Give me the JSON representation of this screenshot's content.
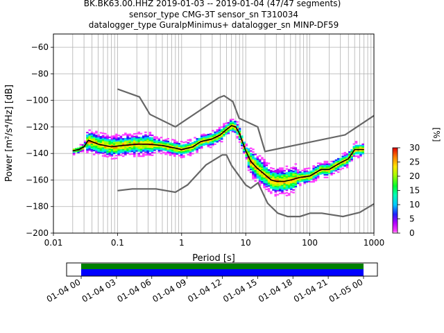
{
  "chart_data": {
    "type": "heatmap",
    "title_lines": [
      "BK.BK63.00.HHZ   2019-01-03 -- 2019-01-04  (47/47 segments)",
      "sensor_type CMG-3T sensor_sn T310034",
      "datalogger_type GuralpMinimus+ datalogger_sn MINP-DF59"
    ],
    "xlabel": "Period [s]",
    "ylabel": "Power [m²/s⁴/Hz] [dB]",
    "x_scale": "log",
    "xlim": [
      0.01,
      1000
    ],
    "ylim": [
      -200,
      -50
    ],
    "grid": true,
    "x_ticks": [
      {
        "value": 0.01,
        "label": "0.01"
      },
      {
        "value": 0.1,
        "label": "0.1"
      },
      {
        "value": 1,
        "label": "1"
      },
      {
        "value": 10,
        "label": "10"
      },
      {
        "value": 100,
        "label": "100"
      },
      {
        "value": 1000,
        "label": "1000"
      }
    ],
    "y_ticks": [
      {
        "value": -60,
        "label": "−60"
      },
      {
        "value": -80,
        "label": "−80"
      },
      {
        "value": -100,
        "label": "−100"
      },
      {
        "value": -120,
        "label": "−120"
      },
      {
        "value": -140,
        "label": "−140"
      },
      {
        "value": -160,
        "label": "−160"
      },
      {
        "value": -180,
        "label": "−180"
      },
      {
        "value": -200,
        "label": "−200"
      }
    ],
    "colorbar": {
      "label": "[%]",
      "range": [
        0,
        30
      ],
      "ticks": [
        {
          "value": 0,
          "label": "0"
        },
        {
          "value": 5,
          "label": "5"
        },
        {
          "value": 10,
          "label": "10"
        },
        {
          "value": 15,
          "label": "15"
        },
        {
          "value": 20,
          "label": "20"
        },
        {
          "value": 25,
          "label": "25"
        },
        {
          "value": 30,
          "label": "30"
        }
      ]
    },
    "nhnm": {
      "x": [
        0.1,
        0.22,
        0.32,
        0.8,
        3.8,
        4.6,
        6.3,
        7.9,
        15.4,
        20,
        354.8,
        1000
      ],
      "y": [
        -91.5,
        -97.4,
        -110.5,
        -120,
        -98,
        -96.5,
        -101,
        -113.5,
        -120,
        -138.5,
        -126,
        -111.5
      ]
    },
    "nlnm": {
      "x": [
        0.1,
        0.17,
        0.4,
        0.8,
        1.24,
        2.4,
        4.3,
        5,
        6,
        10,
        12,
        15.6,
        21.9,
        31.6,
        45,
        70,
        101,
        154,
        328,
        600,
        1000
      ],
      "y": [
        -168,
        -166.7,
        -166.7,
        -169.2,
        -163.7,
        -148.6,
        -141.1,
        -141.1,
        -149,
        -163.8,
        -166.2,
        -162.1,
        -177.5,
        -185,
        -187.5,
        -187.5,
        -185,
        -185,
        -187.5,
        -184.4,
        -178
      ]
    },
    "median": {
      "x": [
        0.02,
        0.025,
        0.03,
        0.035,
        0.05,
        0.08,
        0.12,
        0.2,
        0.3,
        0.5,
        0.8,
        1.0,
        1.5,
        2.0,
        3.0,
        4.0,
        5.0,
        6.0,
        7.0,
        8.0,
        10,
        12,
        15,
        20,
        25,
        30,
        40,
        50,
        70,
        100,
        150,
        200,
        300,
        400,
        500,
        700
      ],
      "y": [
        -138,
        -137,
        -135,
        -130,
        -133,
        -135,
        -134,
        -133,
        -133,
        -134,
        -136,
        -137,
        -135,
        -131,
        -129,
        -126,
        -122,
        -119,
        -120,
        -125,
        -138,
        -146,
        -151,
        -156,
        -160,
        -161,
        -161,
        -160,
        -158,
        -157,
        -152,
        -152,
        -147,
        -144,
        -137,
        -137
      ]
    },
    "time_axis": {
      "ticks": [
        "01-04 00",
        "01-04 03",
        "01-04 06",
        "01-04 09",
        "01-04 12",
        "01-04 15",
        "01-04 18",
        "01-04 21",
        "01-05 00"
      ],
      "coverage_colors": [
        "#008000",
        "#0000ff"
      ]
    }
  }
}
